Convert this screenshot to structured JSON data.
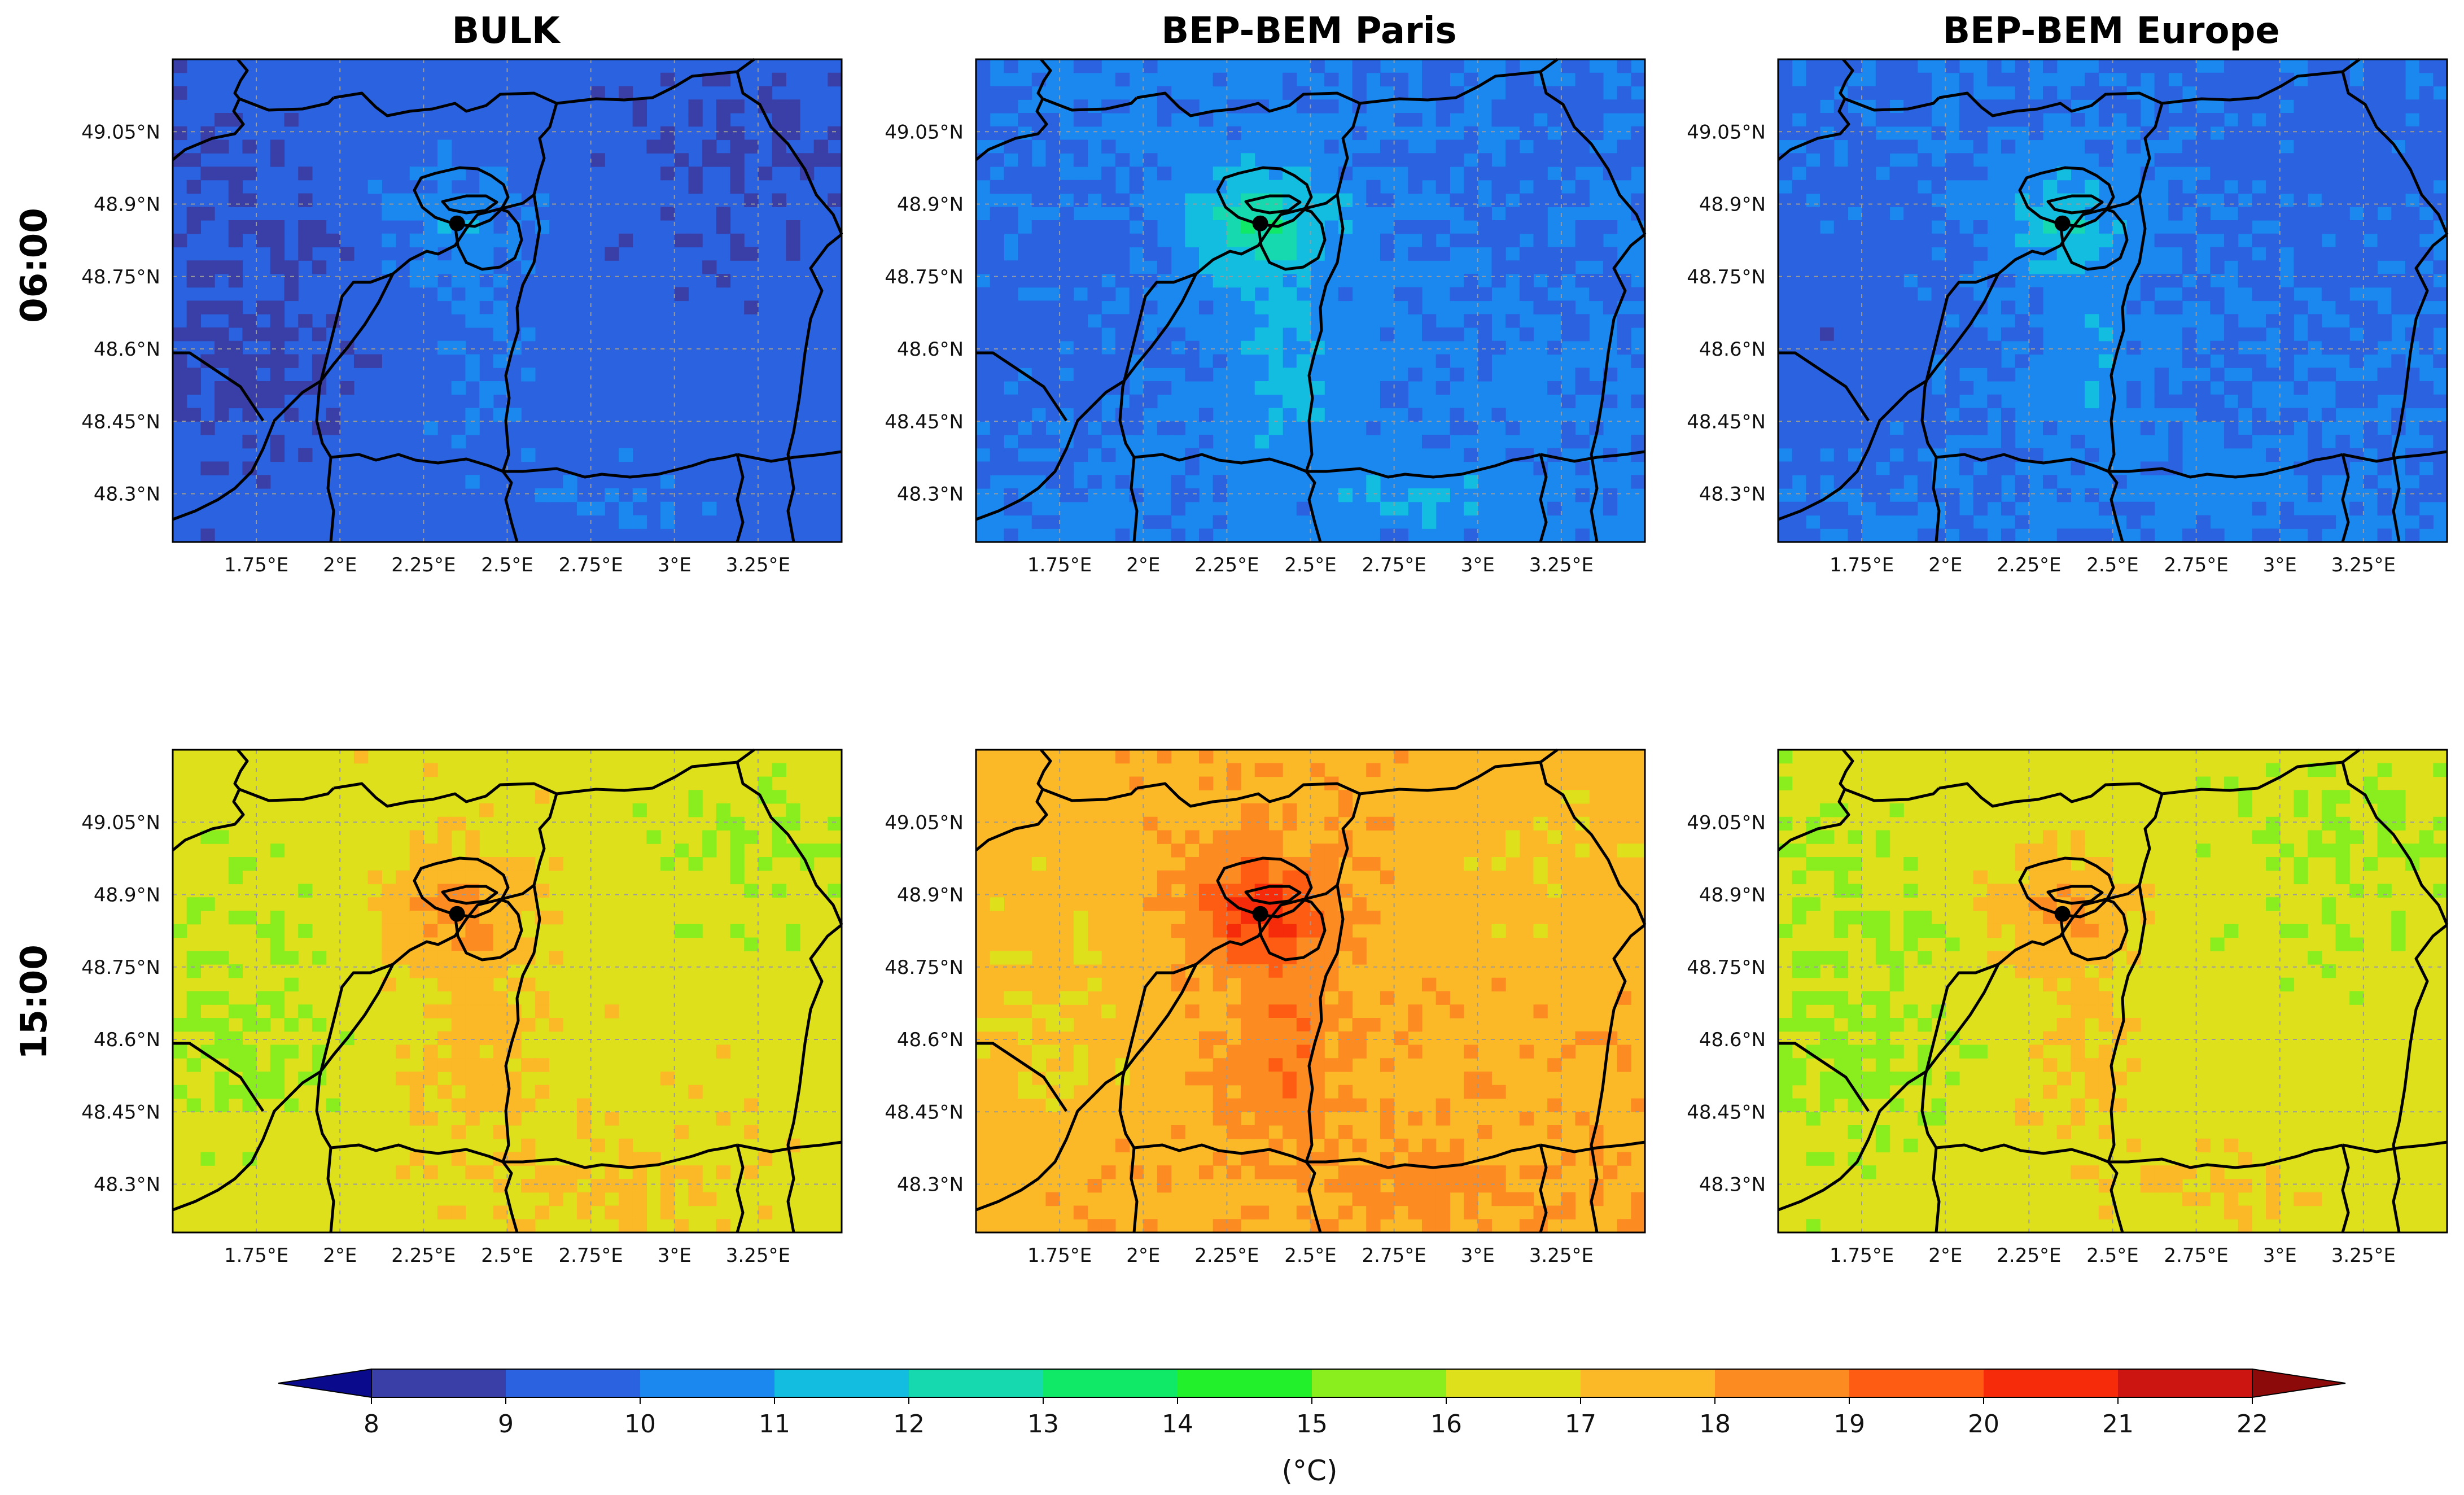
{
  "columns": [
    {
      "title": "BULK",
      "key": "bulk"
    },
    {
      "title": "BEP-BEM Paris",
      "key": "paris"
    },
    {
      "title": "BEP-BEM Europe",
      "key": "europe"
    }
  ],
  "rows": [
    {
      "label": "06:00",
      "key": "morning"
    },
    {
      "label": "15:00",
      "key": "afternoon"
    }
  ],
  "longitude_ticks": [
    "1.75°E",
    "2°E",
    "2.25°E",
    "2.5°E",
    "2.75°E",
    "3°E",
    "3.25°E"
  ],
  "latitude_ticks": [
    "49.05°N",
    "48.9°N",
    "48.75°N",
    "48.6°N",
    "48.45°N",
    "48.3°N"
  ],
  "map_extent": {
    "lon": [
      1.5,
      3.5
    ],
    "lat": [
      48.2,
      49.2
    ]
  },
  "paris_marker": {
    "lon": 2.35,
    "lat": 48.86
  },
  "colorbar": {
    "ticks": [
      "8",
      "9",
      "10",
      "11",
      "12",
      "13",
      "14",
      "15",
      "16",
      "17",
      "18",
      "19",
      "20",
      "21",
      "22"
    ],
    "values": [
      8,
      9,
      10,
      11,
      12,
      13,
      14,
      15,
      16,
      17,
      18,
      19,
      20,
      21,
      22
    ],
    "colors": [
      "#3a3fa8",
      "#2a62e0",
      "#1b88f0",
      "#13bde0",
      "#17d9b0",
      "#10e868",
      "#22f02a",
      "#8aee1e",
      "#dde01a",
      "#fbb827",
      "#fc8b22",
      "#fd5c12",
      "#f52b0a",
      "#cc1410"
    ],
    "under_color": "#0a0a8c",
    "over_color": "#8c0a0a",
    "extend": "both",
    "label": "(°C)"
  },
  "fields": {
    "bulk_morning": {
      "base": 9.5,
      "uhi": 1.3
    },
    "paris_morning": {
      "base": 10.2,
      "uhi": 2.6
    },
    "europe_morning": {
      "base": 10.0,
      "uhi": 1.8
    },
    "bulk_afternoon": {
      "base": 16.6,
      "uhi": 1.9
    },
    "paris_afternoon": {
      "base": 17.7,
      "uhi": 2.8
    },
    "europe_afternoon": {
      "base": 16.5,
      "uhi": 1.7
    }
  }
}
